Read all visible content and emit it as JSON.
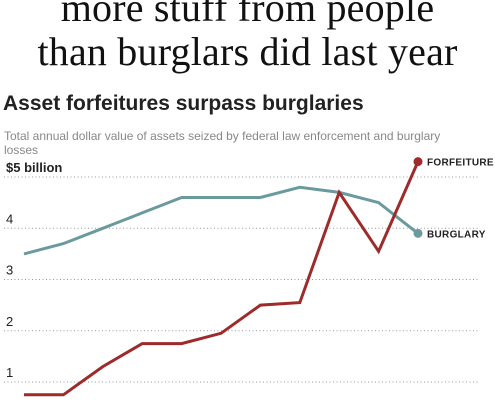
{
  "headline": {
    "line1": "more stuff from people",
    "line2": "than burglars did last year"
  },
  "chart_data": {
    "type": "line",
    "title": "Asset forfeitures surpass burglaries",
    "subtitle": "Total annual dollar value of assets seized by federal law enforcement and burglary losses",
    "ylim": [
      0.7,
      5.3
    ],
    "yticks": [
      {
        "value": 5,
        "label": "$5 billion"
      },
      {
        "value": 4,
        "label": "4"
      },
      {
        "value": 3,
        "label": "3"
      },
      {
        "value": 2,
        "label": "2"
      },
      {
        "value": 1,
        "label": "1"
      }
    ],
    "grid": true,
    "series": [
      {
        "name": "BURGLARY",
        "color": "#6b9a9e",
        "values": [
          3.5,
          3.7,
          4.0,
          4.3,
          4.6,
          4.6,
          4.6,
          4.8,
          4.7,
          4.5,
          3.9
        ]
      },
      {
        "name": "FORFEITURE",
        "color": "#9e2a2b",
        "values": [
          0.75,
          0.75,
          1.3,
          1.75,
          1.75,
          1.95,
          2.5,
          2.55,
          4.7,
          3.55,
          5.3
        ]
      }
    ]
  }
}
